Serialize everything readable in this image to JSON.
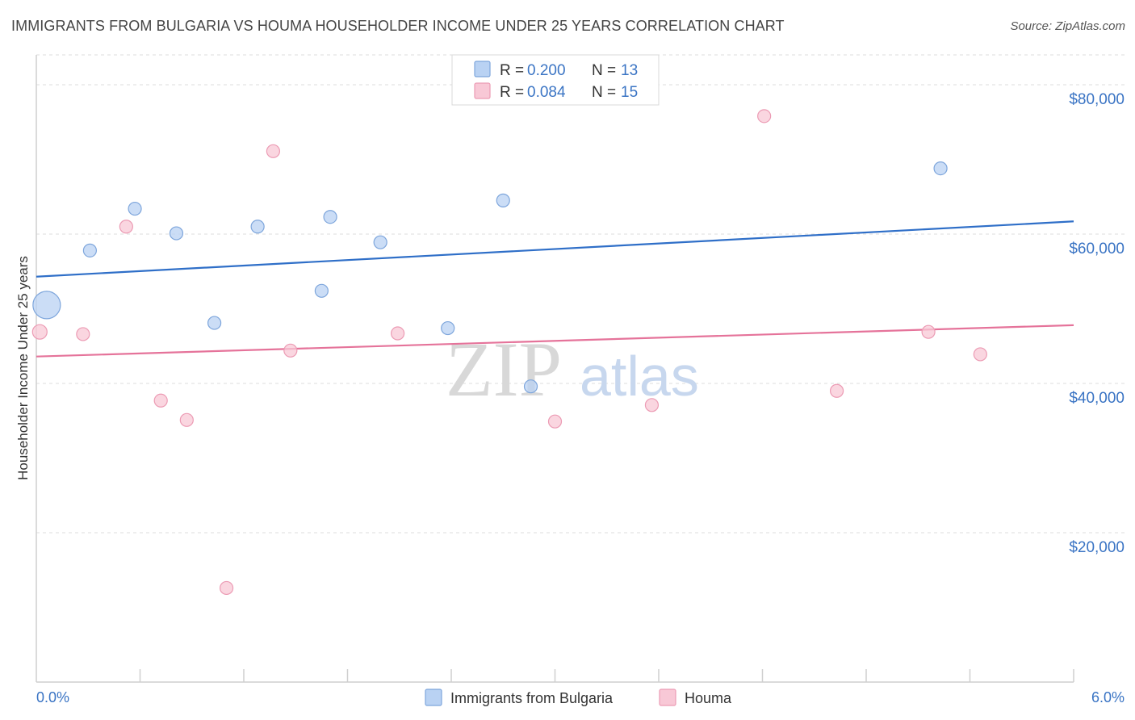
{
  "title": "IMMIGRANTS FROM BULGARIA VS HOUMA HOUSEHOLDER INCOME UNDER 25 YEARS CORRELATION CHART",
  "source": "Source: ZipAtlas.com",
  "watermark": {
    "zip": "ZIP",
    "atlas": "atlas"
  },
  "colors": {
    "blue_fill": "#b9d2f3",
    "blue_stroke": "#7ea6dc",
    "blue_line": "#2f6fc8",
    "pink_fill": "#f8c8d6",
    "pink_stroke": "#ec9bb4",
    "pink_line": "#e5739a",
    "tick_text": "#3a74c4",
    "grid": "#dddddd"
  },
  "legend": {
    "rows": [
      {
        "r_label": "R = ",
        "r_value": "0.200",
        "n_label": "N = ",
        "n_value": "13"
      },
      {
        "r_label": "R = ",
        "r_value": "0.084",
        "n_label": "N = ",
        "n_value": "15"
      }
    ]
  },
  "chart_data": {
    "type": "scatter",
    "title": "IMMIGRANTS FROM BULGARIA VS HOUMA HOUSEHOLDER INCOME UNDER 25 YEARS CORRELATION CHART",
    "xlabel": "",
    "ylabel": "Householder Income Under 25 years",
    "xlim": [
      0,
      6
    ],
    "ylim": [
      0,
      84000
    ],
    "x_tick_labels": {
      "min": "0.0%",
      "max": "6.0%"
    },
    "y_ticks": [
      {
        "value": 20000,
        "label": "$20,000"
      },
      {
        "value": 40000,
        "label": "$40,000"
      },
      {
        "value": 60000,
        "label": "$60,000"
      },
      {
        "value": 80000,
        "label": "$80,000"
      }
    ],
    "series": [
      {
        "name": "Immigrants from Bulgaria",
        "color": "blue",
        "trend": {
          "y_at_xmin": 54300,
          "y_at_xmax": 61700
        },
        "points": [
          {
            "x": 0.06,
            "y": 50500,
            "size": 34
          },
          {
            "x": 0.31,
            "y": 57800,
            "size": 16
          },
          {
            "x": 0.57,
            "y": 63400,
            "size": 16
          },
          {
            "x": 0.81,
            "y": 60100,
            "size": 16
          },
          {
            "x": 1.03,
            "y": 48100,
            "size": 16
          },
          {
            "x": 1.28,
            "y": 61000,
            "size": 16
          },
          {
            "x": 1.65,
            "y": 52400,
            "size": 16
          },
          {
            "x": 1.7,
            "y": 62300,
            "size": 16
          },
          {
            "x": 1.99,
            "y": 58900,
            "size": 16
          },
          {
            "x": 2.38,
            "y": 47400,
            "size": 16
          },
          {
            "x": 2.7,
            "y": 64500,
            "size": 16
          },
          {
            "x": 2.86,
            "y": 39600,
            "size": 16
          },
          {
            "x": 5.23,
            "y": 68800,
            "size": 16
          }
        ]
      },
      {
        "name": "Houma",
        "color": "pink",
        "trend": {
          "y_at_xmin": 43600,
          "y_at_xmax": 47800
        },
        "points": [
          {
            "x": 0.02,
            "y": 46900,
            "size": 18
          },
          {
            "x": 0.27,
            "y": 46600,
            "size": 16
          },
          {
            "x": 0.52,
            "y": 61000,
            "size": 16
          },
          {
            "x": 0.72,
            "y": 37700,
            "size": 16
          },
          {
            "x": 0.87,
            "y": 35100,
            "size": 16
          },
          {
            "x": 1.1,
            "y": 12600,
            "size": 16
          },
          {
            "x": 1.37,
            "y": 71100,
            "size": 16
          },
          {
            "x": 1.47,
            "y": 44400,
            "size": 16
          },
          {
            "x": 2.09,
            "y": 46700,
            "size": 16
          },
          {
            "x": 3.0,
            "y": 34900,
            "size": 16
          },
          {
            "x": 3.56,
            "y": 37100,
            "size": 16
          },
          {
            "x": 4.21,
            "y": 75800,
            "size": 16
          },
          {
            "x": 4.63,
            "y": 39000,
            "size": 16
          },
          {
            "x": 5.16,
            "y": 46900,
            "size": 16
          },
          {
            "x": 5.46,
            "y": 43900,
            "size": 16
          }
        ]
      }
    ]
  }
}
